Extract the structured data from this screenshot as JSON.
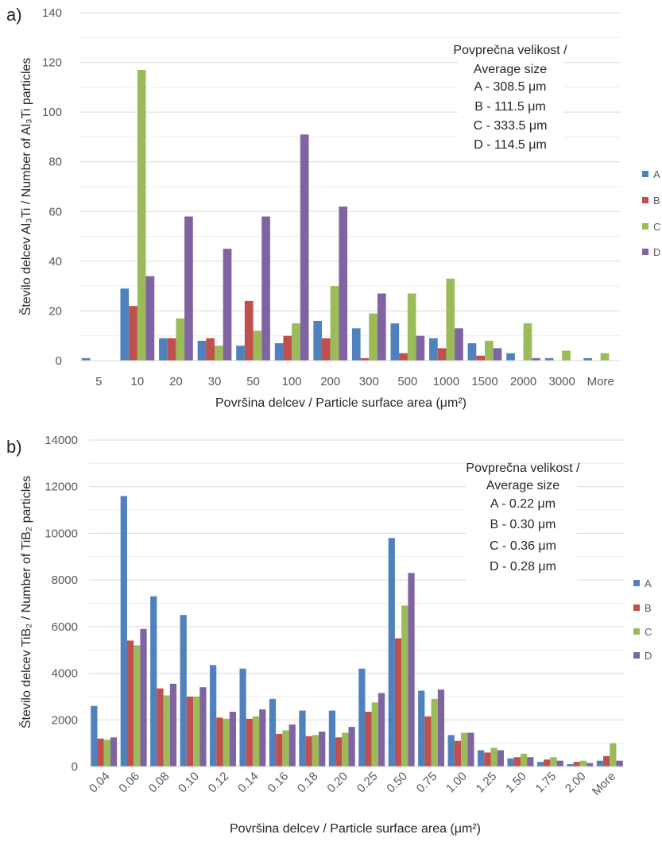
{
  "colors": {
    "A": "#4f81bd",
    "B": "#c0504d",
    "C": "#9bbb59",
    "D": "#8064a2",
    "grid": "#d9d9d9",
    "text": "#595959"
  },
  "chart_data": [
    {
      "panel_label": "a)",
      "type": "bar",
      "xlabel": "Površina delcev / Particle surface area (μm²)",
      "ylabel": "Število delcev Al₃Ti / Number of Al₃Ti particles",
      "ylim": [
        0,
        140
      ],
      "yticks": [
        0,
        20,
        40,
        60,
        80,
        100,
        120,
        140
      ],
      "grid": true,
      "legend_position": "right",
      "categories": [
        "5",
        "10",
        "20",
        "30",
        "50",
        "100",
        "200",
        "300",
        "500",
        "1000",
        "1500",
        "2000",
        "3000",
        "More"
      ],
      "series": [
        {
          "name": "A",
          "values": [
            1,
            29,
            9,
            8,
            6,
            7,
            16,
            13,
            15,
            9,
            7,
            3,
            1,
            1
          ]
        },
        {
          "name": "B",
          "values": [
            0,
            22,
            9,
            9,
            24,
            10,
            9,
            1,
            3,
            5,
            2,
            0,
            0,
            0
          ]
        },
        {
          "name": "C",
          "values": [
            0,
            117,
            17,
            6,
            12,
            15,
            30,
            19,
            27,
            33,
            8,
            15,
            4,
            3
          ]
        },
        {
          "name": "D",
          "values": [
            0,
            34,
            58,
            45,
            58,
            91,
            62,
            27,
            10,
            13,
            5,
            1,
            0,
            0
          ]
        }
      ],
      "annotation": [
        "Povprečna velikost /",
        "Average size",
        "A - 308.5 μm",
        "B - 111.5 μm",
        "C - 333.5 μm",
        "D - 114.5 μm"
      ]
    },
    {
      "panel_label": "b)",
      "type": "bar",
      "xlabel": "Površina delcev / Particle surface area (μm²)",
      "ylabel": "Število delcev TiB₂ / Number of TiB₂ particles",
      "ylim": [
        0,
        14000
      ],
      "yticks": [
        0,
        2000,
        4000,
        6000,
        8000,
        10000,
        12000,
        14000
      ],
      "grid": true,
      "legend_position": "right",
      "categories": [
        "0.04",
        "0.06",
        "0.08",
        "0.10",
        "0.12",
        "0.14",
        "0.16",
        "0.18",
        "0.20",
        "0.25",
        "0.50",
        "0.75",
        "1.00",
        "1.25",
        "1.50",
        "1.75",
        "2.00",
        "More"
      ],
      "series": [
        {
          "name": "A",
          "values": [
            2600,
            11600,
            7300,
            6500,
            4350,
            4200,
            2900,
            2400,
            2400,
            4200,
            9800,
            3250,
            1350,
            700,
            350,
            200,
            100,
            250
          ]
        },
        {
          "name": "B",
          "values": [
            1200,
            5400,
            3350,
            3000,
            2100,
            2050,
            1400,
            1300,
            1250,
            2350,
            5500,
            2150,
            1100,
            600,
            400,
            300,
            200,
            450
          ]
        },
        {
          "name": "C",
          "values": [
            1150,
            5200,
            3050,
            3000,
            2050,
            2150,
            1550,
            1350,
            1450,
            2750,
            6900,
            2900,
            1450,
            800,
            550,
            400,
            250,
            1000
          ]
        },
        {
          "name": "D",
          "values": [
            1250,
            5900,
            3550,
            3400,
            2350,
            2450,
            1800,
            1500,
            1700,
            3150,
            8300,
            3300,
            1450,
            700,
            400,
            250,
            150,
            250
          ]
        }
      ],
      "annotation": [
        "Povprečna velikost /",
        "Average size",
        "A - 0.22 μm",
        "B - 0.30 μm",
        "C - 0.36 μm",
        "D - 0.28 μm"
      ]
    }
  ]
}
